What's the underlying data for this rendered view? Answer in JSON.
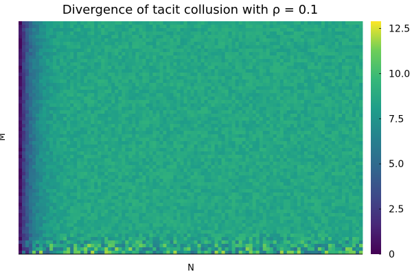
{
  "chart_data": {
    "type": "heatmap",
    "title": "Divergence of tacit collusion with ρ = 0.1",
    "xlabel": "N",
    "ylabel": "M",
    "x_ticks": [],
    "y_ticks": [],
    "colormap": "viridis",
    "colorbar": {
      "range": [
        0,
        12.9
      ],
      "ticks": [
        {
          "value": 0,
          "label": "0"
        },
        {
          "value": 2.5,
          "label": "2.5"
        },
        {
          "value": 5,
          "label": "5.0"
        },
        {
          "value": 7.5,
          "label": "7.5"
        },
        {
          "value": 10,
          "label": "10.0"
        },
        {
          "value": 12.5,
          "label": "12.5"
        }
      ]
    },
    "grid": {
      "n_cols": 100,
      "n_rows": 68
    },
    "pattern": {
      "left_edge_value": 0.4,
      "plateau_value": 8.6,
      "rise_width_columns": 10,
      "noise_amplitude": 0.7,
      "bottom_rows_noise_amplitude": 3.5,
      "bright_outliers_bottom_left": 12.4
    },
    "grid_lines": false,
    "legend": "colorbar-right"
  }
}
